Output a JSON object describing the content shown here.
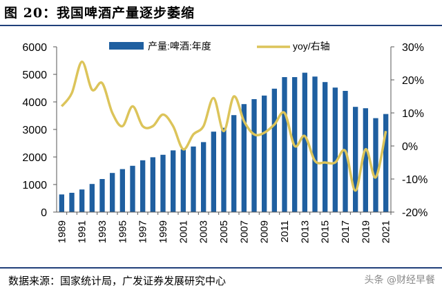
{
  "header": {
    "title": "图 20：我国啤酒产量逐步萎缩"
  },
  "footer": {
    "source": "数据来源：国家统计局，广发证券发展研究中心",
    "watermark": "头条 @财经早餐"
  },
  "colors": {
    "bar": "#1f5fa0",
    "line": "#dcc45a",
    "rule": "#1f3f7a"
  },
  "chart_data": {
    "type": "bar",
    "title": "",
    "categories": [
      "1989",
      "1990",
      "1991",
      "1992",
      "1993",
      "1994",
      "1995",
      "1996",
      "1997",
      "1998",
      "1999",
      "2000",
      "2001",
      "2002",
      "2003",
      "2004",
      "2005",
      "2006",
      "2007",
      "2008",
      "2009",
      "2010",
      "2011",
      "2012",
      "2013",
      "2014",
      "2015",
      "2016",
      "2017",
      "2018",
      "2019",
      "2020",
      "2021"
    ],
    "x_tick_labels": [
      "1989",
      "1991",
      "1993",
      "1995",
      "1997",
      "1999",
      "2001",
      "2003",
      "2005",
      "2007",
      "2009",
      "2011",
      "2013",
      "2015",
      "2017",
      "2019",
      "2021"
    ],
    "series": [
      {
        "name": "产量:啤酒:年度",
        "type": "bar",
        "axis": "left",
        "values": [
          640,
          700,
          820,
          1020,
          1200,
          1420,
          1560,
          1680,
          1880,
          1990,
          2080,
          2240,
          2280,
          2380,
          2540,
          2920,
          3060,
          3520,
          3920,
          4100,
          4230,
          4480,
          4900,
          4900,
          5060,
          4920,
          4720,
          4520,
          4400,
          3820,
          3770,
          3410,
          3560
        ]
      },
      {
        "name": "yoy/右轴",
        "type": "line",
        "axis": "right",
        "values": [
          12,
          16,
          25.5,
          17,
          19,
          10,
          6,
          12,
          6,
          6,
          9.5,
          6,
          -1,
          3.5,
          6,
          14.5,
          4.5,
          15,
          7.5,
          3.5,
          4,
          6.5,
          10,
          0,
          3,
          -4.5,
          -5,
          -5,
          -1.5,
          -13.5,
          -1,
          -9.5,
          4.5
        ]
      }
    ],
    "y_left": {
      "min": 0,
      "max": 6000,
      "ticks": [
        0,
        1000,
        2000,
        3000,
        4000,
        5000,
        6000
      ]
    },
    "y_right": {
      "min": -20,
      "max": 30,
      "ticks": [
        "30%",
        "20%",
        "10%",
        "0%",
        "-10%",
        "-20%"
      ]
    },
    "legend_position": "top"
  }
}
